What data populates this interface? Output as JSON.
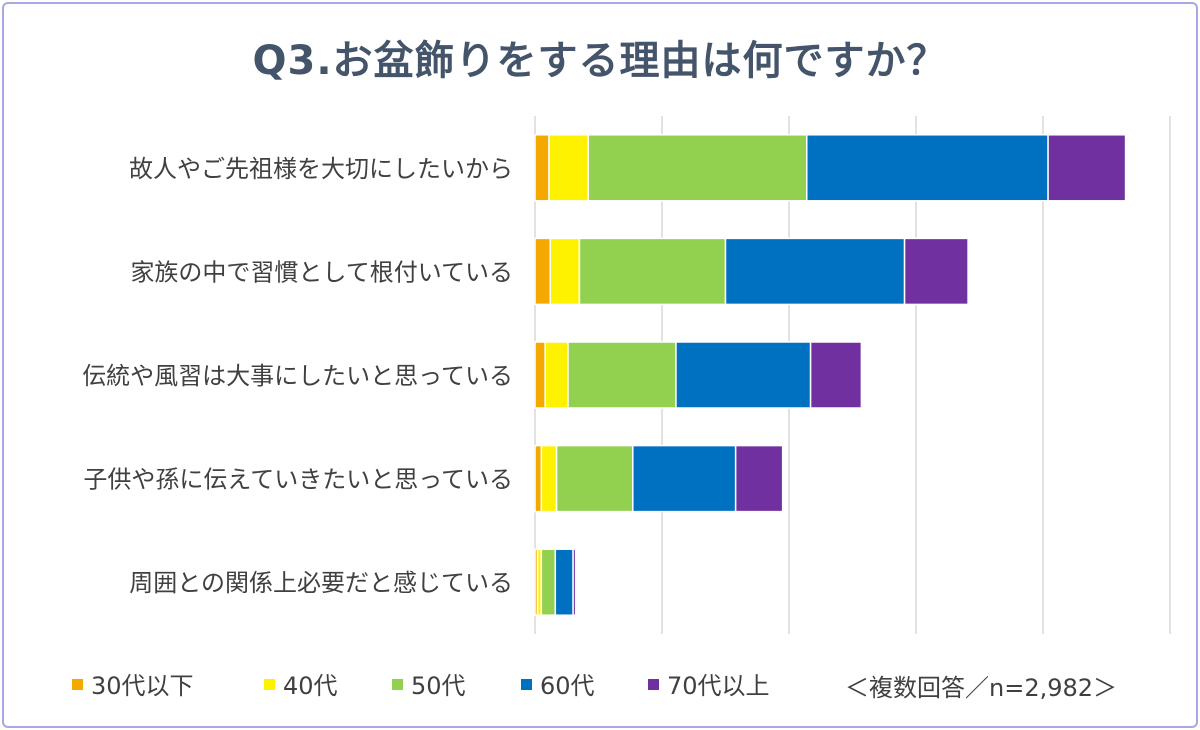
{
  "chart_data": {
    "type": "bar",
    "orientation": "horizontal",
    "stacked": true,
    "title": "Q3.お盆飾りをする理由は何ですか？",
    "categories": [
      "故人やご先祖様を大切にしたいから",
      "家族の中で習慣として根付いている",
      "伝統や風習は大事にしたいと思っている",
      "子供や孫に伝えていきたいと思っている",
      "周囲との関係上必要だと感じている"
    ],
    "series": [
      {
        "name": "30代以下",
        "color": "#f5a800",
        "values": [
          55,
          60,
          40,
          25,
          10
        ]
      },
      {
        "name": "40代",
        "color": "#fff200",
        "values": [
          155,
          115,
          90,
          60,
          15
        ]
      },
      {
        "name": "50代",
        "color": "#92d050",
        "values": [
          860,
          575,
          425,
          300,
          55
        ]
      },
      {
        "name": "60代",
        "color": "#0070c0",
        "values": [
          950,
          705,
          530,
          405,
          70
        ]
      },
      {
        "name": "70代以上",
        "color": "#7030a0",
        "values": [
          305,
          250,
          200,
          185,
          10
        ]
      }
    ],
    "xlim": [
      0,
      2500
    ],
    "grid": true,
    "legend": "bottom",
    "note": "＜複数回答／n=2,982＞"
  }
}
